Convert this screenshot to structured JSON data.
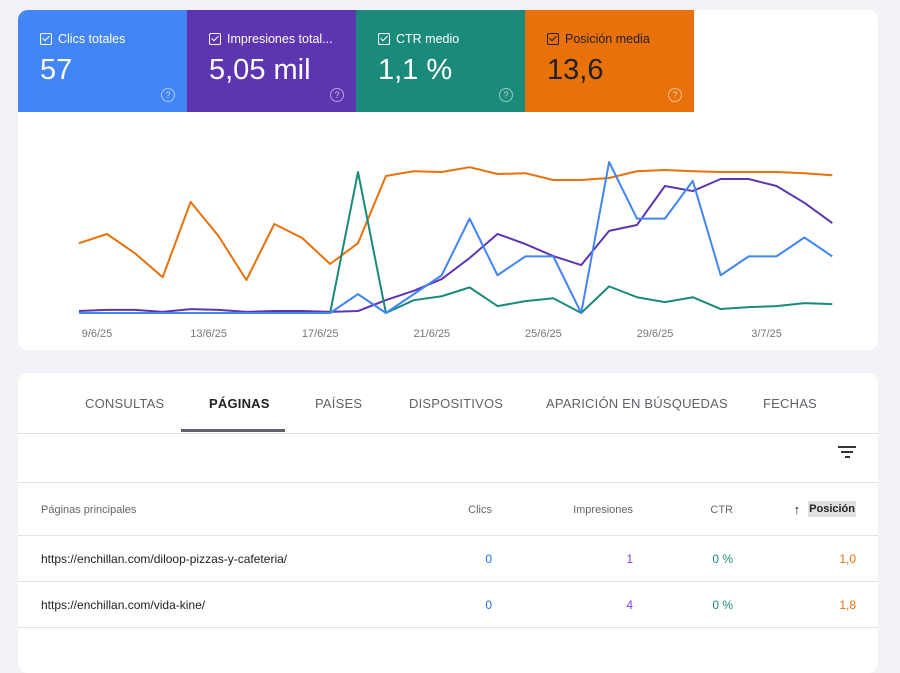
{
  "metrics": [
    {
      "label": "Clics totales",
      "value": "57",
      "color": "#4285f4",
      "checked": true
    },
    {
      "label": "Impresiones total...",
      "value": "5,05 mil",
      "color": "#5e35b1",
      "checked": true
    },
    {
      "label": "CTR medio",
      "value": "1,1 %",
      "color": "#1a8a7a",
      "checked": true
    },
    {
      "label": "Posición media",
      "value": "13,6",
      "color": "#e8710a",
      "checked": true
    }
  ],
  "help_icon": "?",
  "chart_data": {
    "type": "line",
    "x": [
      "9/6/25",
      "10/6/25",
      "11/6/25",
      "12/6/25",
      "13/6/25",
      "14/6/25",
      "15/6/25",
      "16/6/25",
      "17/6/25",
      "18/6/25",
      "19/6/25",
      "20/6/25",
      "21/6/25",
      "22/6/25",
      "23/6/25",
      "24/6/25",
      "25/6/25",
      "26/6/25",
      "27/6/25",
      "28/6/25",
      "29/6/25",
      "30/6/25",
      "1/7/25",
      "2/7/25",
      "3/7/25",
      "4/7/25",
      "5/7/25",
      "6/7/25"
    ],
    "x_tick_labels": [
      "9/6/25",
      "13/6/25",
      "17/6/25",
      "21/6/25",
      "25/6/25",
      "29/6/25",
      "3/7/25"
    ],
    "grid": false,
    "series": [
      {
        "key": "clicks",
        "color": "#4285f4",
        "values": [
          0,
          0,
          0,
          0,
          0,
          0,
          0,
          0,
          0,
          0,
          1,
          0,
          1,
          2,
          5,
          2,
          3,
          3,
          0,
          8,
          5,
          5,
          7,
          2,
          3,
          3,
          4,
          3
        ]
      },
      {
        "key": "impressions",
        "color": "#5e35b1",
        "values": [
          7,
          11,
          11,
          4,
          14,
          11,
          4,
          7,
          7,
          4,
          7,
          46,
          79,
          121,
          196,
          282,
          246,
          203,
          171,
          293,
          314,
          453,
          435,
          478,
          478,
          453,
          393,
          321
        ]
      },
      {
        "key": "ctr",
        "color": "#1a8a7a",
        "values": [
          0,
          0,
          0,
          0,
          0,
          0,
          0,
          0,
          0,
          0,
          14.3,
          0,
          1.3,
          1.7,
          2.6,
          0.7,
          1.2,
          1.5,
          0,
          2.7,
          1.6,
          1.1,
          1.6,
          0.4,
          0.6,
          0.7,
          1.0,
          0.9
        ]
      },
      {
        "key": "position",
        "color": "#e8710a",
        "inverted": true,
        "values": [
          25.8,
          23.5,
          28.3,
          34.3,
          15.5,
          24,
          35,
          21,
          24.5,
          31,
          25.8,
          9,
          7.8,
          8,
          6.8,
          8.5,
          8.3,
          10,
          10,
          9.5,
          7.8,
          7.5,
          7.8,
          8,
          8,
          8,
          8.3,
          8.8
        ]
      }
    ]
  },
  "tabs": [
    {
      "label": "CONSULTAS",
      "active": false
    },
    {
      "label": "PÁGINAS",
      "active": true
    },
    {
      "label": "PAÍSES",
      "active": false
    },
    {
      "label": "DISPOSITIVOS",
      "active": false
    },
    {
      "label": "APARICIÓN EN BÚSQUEDAS",
      "active": false
    },
    {
      "label": "FECHAS",
      "active": false
    }
  ],
  "table": {
    "headers": {
      "page": "Páginas principales",
      "clicks": "Clics",
      "impressions": "Impresiones",
      "ctr": "CTR",
      "position": "Posición",
      "sort_icon": "↑"
    },
    "rows": [
      {
        "page": "https://enchillan.com/diloop-pizzas-y-cafeteria/",
        "clicks": "0",
        "impressions": "1",
        "ctr": "0 %",
        "position": "1,0"
      },
      {
        "page": "https://enchillan.com/vida-kine/",
        "clicks": "0",
        "impressions": "4",
        "ctr": "0 %",
        "position": "1,8"
      }
    ]
  }
}
